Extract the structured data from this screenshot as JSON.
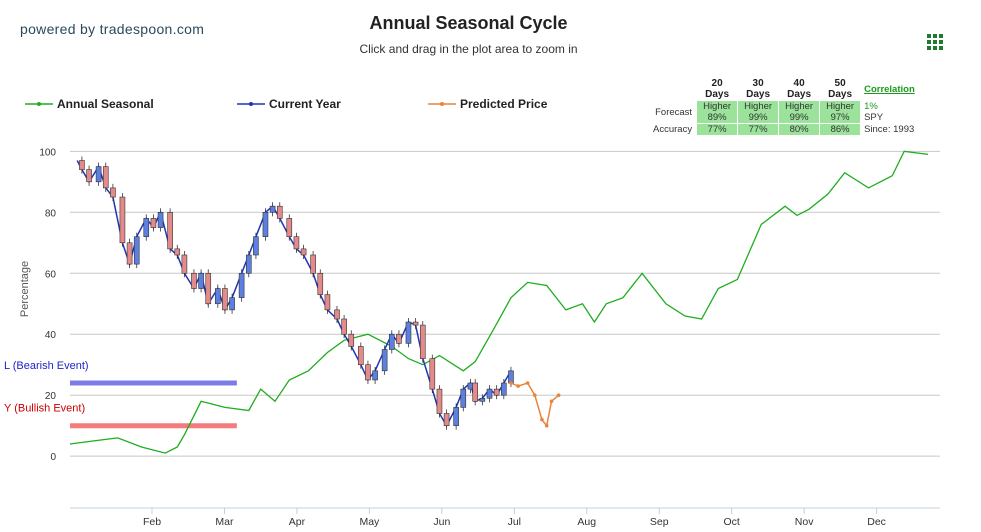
{
  "header": {
    "powered_by": "powered by tradespoon.com",
    "title": "Annual Seasonal Cycle",
    "subtitle": "Click and drag in the plot area to zoom in"
  },
  "legend": [
    {
      "name": "Annual Seasonal",
      "color": "#1fad1f"
    },
    {
      "name": "Current Year",
      "color": "#1f35b5"
    },
    {
      "name": "Predicted Price",
      "color": "#e8843c"
    }
  ],
  "forecast_table": {
    "columns": [
      "20 Days",
      "30 Days",
      "40 Days",
      "50 Days"
    ],
    "forecast_label": "Forecast",
    "accuracy_label": "Accuracy",
    "forecast_direction": [
      "Higher",
      "Higher",
      "Higher",
      "Higher"
    ],
    "forecast_prob": [
      "89%",
      "99%",
      "99%",
      "97%"
    ],
    "accuracy": [
      "77%",
      "77%",
      "80%",
      "86%"
    ],
    "correlation_label": "Correlation",
    "correlation_value": "1%",
    "symbol": "SPY",
    "since": "Since: 1993",
    "cell_color": "#9be39b"
  },
  "events": {
    "bearish_label": "L (Bearish Event)",
    "bullish_label": "Y (Bullish Event)",
    "bearish_color": "#7c7ce8",
    "bullish_color": "#f47b7b"
  },
  "chart_data": {
    "type": "line",
    "ylabel": "Percentage",
    "yticks": [
      0,
      20,
      40,
      60,
      80,
      100
    ],
    "ylim": [
      -17,
      107
    ],
    "months": [
      "Feb",
      "Mar",
      "Apr",
      "May",
      "Jun",
      "Jul",
      "Aug",
      "Sep",
      "Oct",
      "Nov",
      "Dec"
    ],
    "grid": true,
    "legend_position": "top",
    "series": [
      {
        "name": "Annual Seasonal",
        "color": "#1fad1f",
        "x": [
          0,
          10,
          20,
          30,
          40,
          45,
          48,
          55,
          65,
          75,
          80,
          86,
          92,
          100,
          108,
          115,
          125,
          135,
          142,
          148,
          155,
          165,
          170,
          178,
          185,
          192,
          200,
          208,
          215,
          220,
          225,
          232,
          240,
          250,
          258,
          265,
          272,
          280,
          290,
          300,
          305,
          310,
          318,
          325,
          335,
          345,
          350,
          360
        ],
        "values": [
          4,
          5,
          6,
          3,
          1,
          3,
          7,
          18,
          16,
          15,
          22,
          18,
          25,
          28,
          34,
          38,
          40,
          36,
          32,
          30,
          33,
          28,
          31,
          42,
          52,
          57,
          56,
          48,
          50,
          44,
          50,
          52,
          60,
          50,
          46,
          45,
          55,
          58,
          76,
          82,
          79,
          81,
          86,
          93,
          88,
          92,
          100,
          99
        ]
      },
      {
        "name": "Current Year",
        "color": "#1f35b5",
        "x": [
          3,
          5,
          8,
          12,
          15,
          18,
          22,
          25,
          28,
          32,
          35,
          38,
          42,
          45,
          48,
          52,
          55,
          58,
          62,
          65,
          68,
          72,
          75,
          78,
          82,
          85,
          88,
          92,
          95,
          98,
          102,
          105,
          108,
          112,
          115,
          118,
          122,
          125,
          128,
          132,
          135,
          138,
          142,
          145,
          148,
          152,
          155,
          158,
          162,
          165,
          168,
          170,
          173,
          176,
          179,
          182,
          185
        ],
        "values": [
          97,
          94,
          90,
          95,
          88,
          85,
          70,
          63,
          72,
          78,
          75,
          80,
          68,
          66,
          60,
          55,
          60,
          50,
          55,
          48,
          52,
          60,
          66,
          72,
          80,
          82,
          78,
          72,
          68,
          66,
          60,
          53,
          48,
          45,
          40,
          36,
          30,
          25,
          28,
          35,
          40,
          37,
          44,
          43,
          32,
          22,
          14,
          10,
          16,
          22,
          24,
          18,
          19,
          22,
          20,
          24,
          28
        ]
      },
      {
        "name": "Predicted Price",
        "color": "#e8843c",
        "x": [
          185,
          188,
          192,
          195,
          198,
          200,
          202,
          205
        ],
        "values": [
          24,
          23,
          24,
          20,
          12,
          10,
          18,
          20
        ]
      }
    ],
    "bearish_event_level": 24,
    "bullish_event_level": 10,
    "event_x_range": [
      0,
      70
    ]
  }
}
